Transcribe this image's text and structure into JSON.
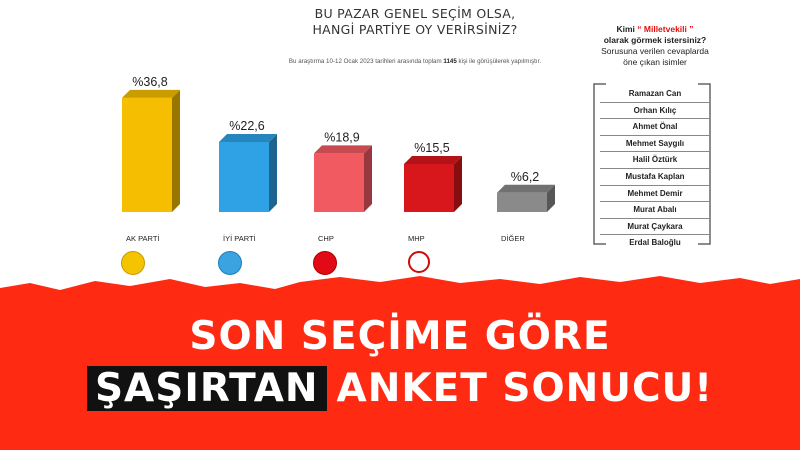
{
  "title_line1": "BU PAZAR GENEL SEÇİM OLSA,",
  "title_line2": "HANGİ PARTİYE OY VERİRSİNİZ?",
  "subtitle_pre": "Bu araştırma 10-12 Ocak 2023 tarihleri arasında toplam",
  "subtitle_num": "1145",
  "subtitle_post": "kişi ile görüşülerek yapılmıştır.",
  "side_question": {
    "l1a": "Kimi",
    "l1b": "“ Milletvekili ”",
    "l2": "olarak görmek istersiniz?",
    "l3": "Sorusuna verilen cevaplarda",
    "l4": "öne çıkan isimler"
  },
  "names": [
    "Ramazan Can",
    "Orhan Kılıç",
    "Ahmet Önal",
    "Mehmet Saygılı",
    "Halil Öztürk",
    "Mustafa Kaplan",
    "Mehmet Demir",
    "Murat Abalı",
    "Murat Çaykara",
    "Erdal Baloğlu"
  ],
  "headline_line1": "SON SEÇİME GÖRE",
  "headline_box": "ŞAŞIRTAN",
  "headline_rest": "ANKET SONUCU!",
  "logo_text": {
    "akp": "AK PARTİ",
    "iyi": "İYİ PARTİ",
    "chp": "CHP"
  },
  "colors": {
    "akp": "#f5be00",
    "iyi": "#2fa2e6",
    "chp": "#f25a62",
    "mhp": "#d8171c",
    "diger": "#8a8a8a",
    "banner": "#ff2a12"
  },
  "chart_data": {
    "type": "bar",
    "categories": [
      "AK PARTİ",
      "İYİ PARTİ",
      "CHP",
      "MHP",
      "DİĞER"
    ],
    "values": [
      36.8,
      22.6,
      18.9,
      15.5,
      6.2
    ],
    "value_labels": [
      "%36,8",
      "%22,6",
      "%18,9",
      "%15,5",
      "%6,2"
    ],
    "bar_colors": [
      "#f5be00",
      "#2fa2e6",
      "#f25a62",
      "#d8171c",
      "#8a8a8a"
    ],
    "ylim": [
      0,
      40
    ],
    "grid": false,
    "legend": "none"
  }
}
